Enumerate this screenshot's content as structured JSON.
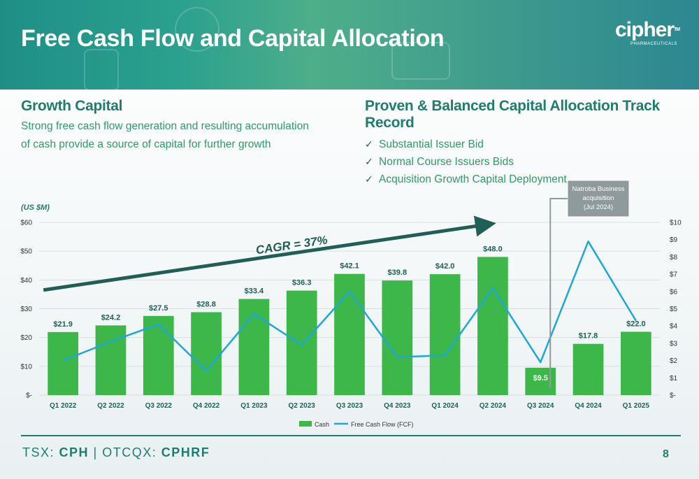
{
  "header": {
    "title": "Free Cash Flow and Capital Allocation"
  },
  "logo": {
    "word": "cipher",
    "tm": "TM",
    "subtitle": "PHARMACEUTICALS"
  },
  "growth_capital": {
    "title": "Growth Capital",
    "line1": "Strong free cash flow generation and resulting accumulation",
    "line2": "of cash provide a source of capital for further growth"
  },
  "track_record": {
    "title": "Proven & Balanced Capital Allocation Track Record",
    "check": "✓",
    "items": [
      "Substantial Issuer Bid",
      "Normal Course Issuers Bids",
      "Acquisition Growth Capital Deployment"
    ]
  },
  "chart_data": {
    "type": "bar",
    "unit_label": "(US $M)",
    "categories": [
      "Q1 2022",
      "Q2 2022",
      "Q3 2022",
      "Q4 2022",
      "Q1 2023",
      "Q2 2023",
      "Q3 2023",
      "Q4 2023",
      "Q1 2024",
      "Q2 2024",
      "Q3 2024",
      "Q4 2024",
      "Q1 2025"
    ],
    "series": [
      {
        "name": "Cash",
        "type": "bar",
        "axis": "left",
        "color": "#3db74a",
        "values": [
          21.9,
          24.2,
          27.5,
          28.8,
          33.4,
          36.3,
          42.1,
          39.8,
          42.0,
          48.0,
          9.5,
          17.8,
          22.0
        ],
        "labels": [
          "$21.9",
          "$24.2",
          "$27.5",
          "$28.8",
          "$33.4",
          "$36.3",
          "$42.1",
          "$39.8",
          "$42.0",
          "$48.0",
          "$9.5",
          "$17.8",
          "$22.0"
        ]
      },
      {
        "name": "Free Cash Flow (FCF)",
        "type": "line",
        "axis": "right",
        "color": "#1fa7d6",
        "values": [
          2.0,
          3.1,
          4.1,
          1.4,
          4.7,
          2.9,
          6.0,
          2.2,
          2.3,
          6.2,
          1.9,
          8.9,
          4.3
        ]
      }
    ],
    "ylim_left": [
      0,
      60
    ],
    "ylim_right": [
      0,
      10
    ],
    "left_ticks": [
      "$-",
      "$10",
      "$20",
      "$30",
      "$40",
      "$50",
      "$60"
    ],
    "right_ticks": [
      "$-",
      "$1",
      "$2",
      "$3",
      "$4",
      "$5",
      "$6",
      "$7",
      "$8",
      "$9",
      "$10"
    ],
    "grid": true,
    "legend_position": "bottom",
    "cagr_label": "CAGR = 37%",
    "annotation": {
      "lines": [
        "Natroba Business",
        "acquisition",
        "(Jul 2024)"
      ],
      "target_category": "Q3 2024"
    }
  },
  "footer": {
    "tsx_prefix": "TSX: ",
    "tsx": "CPH",
    "sep": " | OTCQX: ",
    "otcqx": "CPHRF"
  },
  "page_number": "8"
}
